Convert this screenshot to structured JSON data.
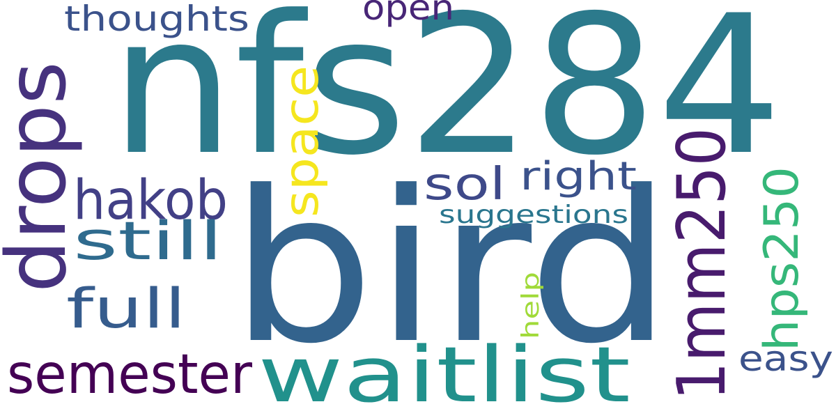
{
  "words": [
    {
      "key": "nfs284",
      "text": "nfs284",
      "color": "#2c7a8c"
    },
    {
      "key": "bird",
      "text": "bird",
      "color": "#33638d"
    },
    {
      "key": "waitlist",
      "text": "waitlist",
      "color": "#21918c"
    },
    {
      "key": "drops",
      "text": "drops",
      "color": "#46327e"
    },
    {
      "key": "1mm250",
      "text": "1mm250",
      "color": "#481b6d"
    },
    {
      "key": "semester",
      "text": "semester",
      "color": "#440154"
    },
    {
      "key": "space",
      "text": "space",
      "color": "#f5e61f"
    },
    {
      "key": "hakob",
      "text": "hakob",
      "color": "#424086"
    },
    {
      "key": "still",
      "text": "still",
      "color": "#2f6b8e"
    },
    {
      "key": "full",
      "text": "full",
      "color": "#365c8d"
    },
    {
      "key": "thoughts",
      "text": "thoughts",
      "color": "#3b528b"
    },
    {
      "key": "open",
      "text": "open",
      "color": "#482677"
    },
    {
      "key": "sol",
      "text": "sol",
      "color": "#3e4989"
    },
    {
      "key": "right",
      "text": "right",
      "color": "#3b528b"
    },
    {
      "key": "suggestions",
      "text": "suggestions",
      "color": "#2a768e"
    },
    {
      "key": "hps250",
      "text": "hps250",
      "color": "#35b779"
    },
    {
      "key": "help",
      "text": "help",
      "color": "#a0da39"
    },
    {
      "key": "easy",
      "text": "easy",
      "color": "#3b528b"
    }
  ]
}
